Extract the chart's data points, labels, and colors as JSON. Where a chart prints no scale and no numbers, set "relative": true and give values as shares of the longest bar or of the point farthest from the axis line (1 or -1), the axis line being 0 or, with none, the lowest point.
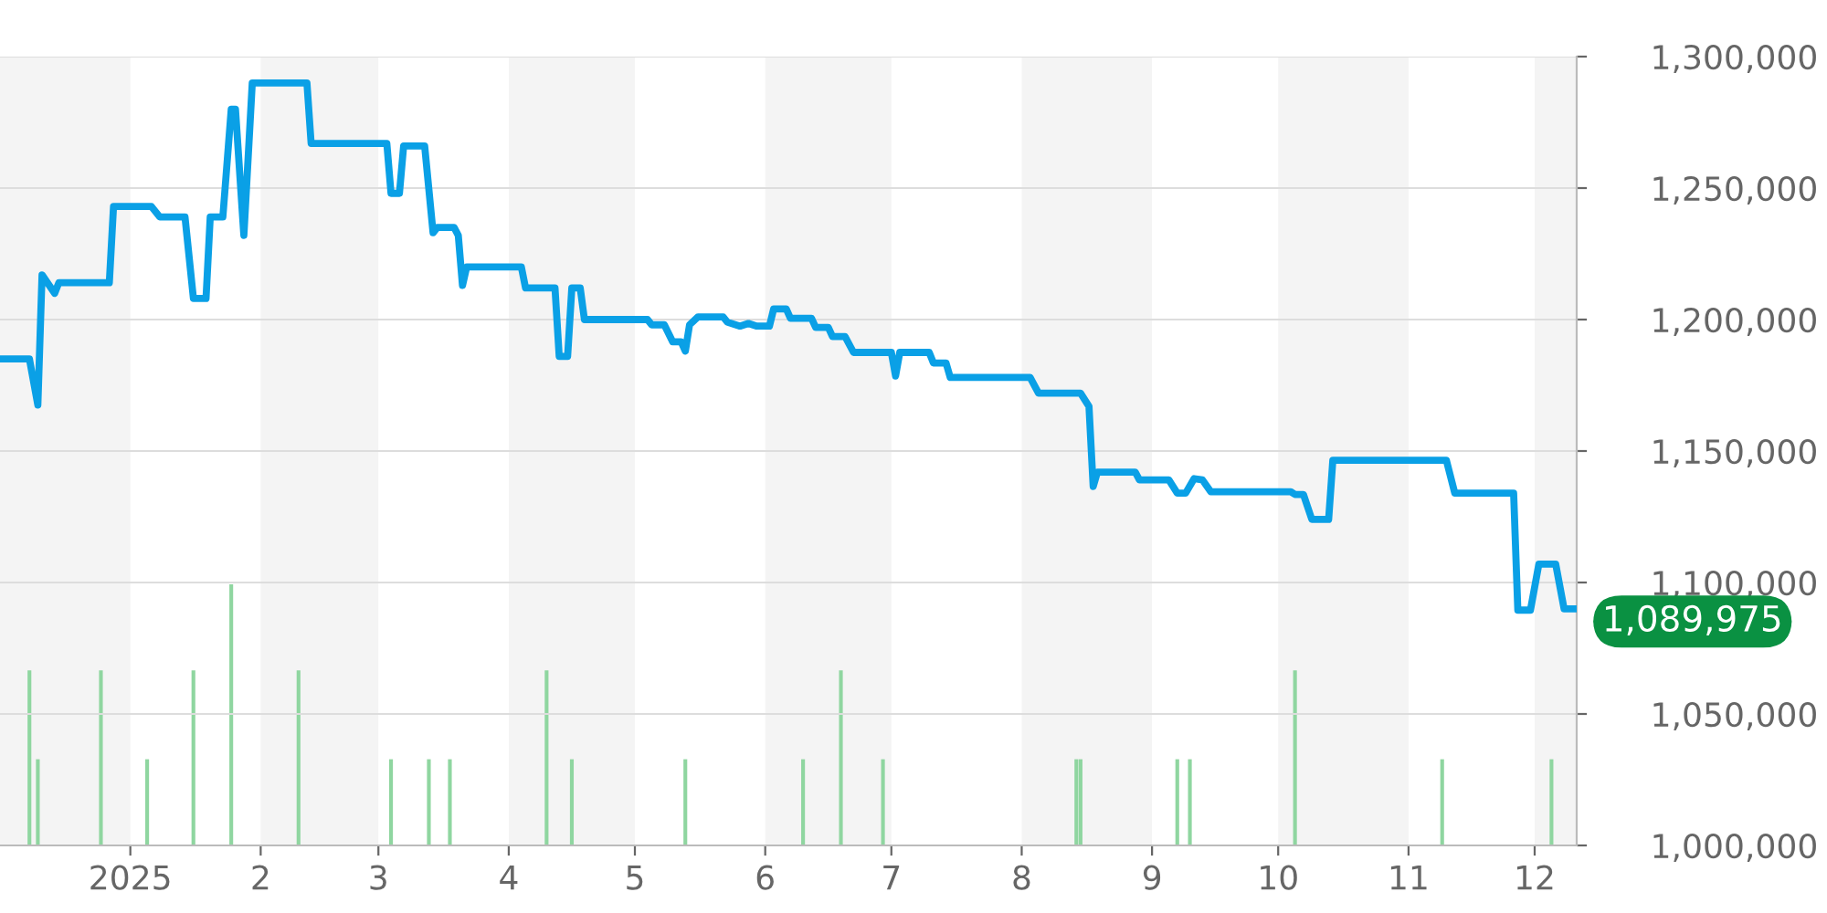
{
  "chart_data": [
    {
      "type": "line",
      "x": [
        "2024-12-01",
        "2024-12-08",
        "2024-12-10",
        "2024-12-11",
        "2024-12-14",
        "2024-12-15",
        "2024-12-27",
        "2024-12-28",
        "2025-01-06",
        "2025-01-08",
        "2025-01-14",
        "2025-01-16",
        "2025-01-19",
        "2025-01-20",
        "2025-01-23",
        "2025-01-25",
        "2025-01-26",
        "2025-01-28",
        "2025-01-30",
        "2025-02-12",
        "2025-02-13",
        "2025-03-03",
        "2025-03-04",
        "2025-03-06",
        "2025-03-07",
        "2025-03-12",
        "2025-03-14",
        "2025-03-15",
        "2025-03-19",
        "2025-03-20",
        "2025-03-21",
        "2025-03-22",
        "2025-04-04",
        "2025-04-05",
        "2025-04-12",
        "2025-04-13",
        "2025-04-15",
        "2025-04-16",
        "2025-04-18",
        "2025-04-19",
        "2025-05-04",
        "2025-05-05",
        "2025-05-08",
        "2025-05-10",
        "2025-05-12",
        "2025-05-13",
        "2025-05-14",
        "2025-05-16",
        "2025-05-22",
        "2025-05-23",
        "2025-05-26",
        "2025-05-28",
        "2025-05-30",
        "2025-06-02",
        "2025-06-03",
        "2025-06-06",
        "2025-06-07",
        "2025-06-12",
        "2025-06-13",
        "2025-06-16",
        "2025-06-17",
        "2025-06-20",
        "2025-06-22",
        "2025-07-01",
        "2025-07-02",
        "2025-07-03",
        "2025-07-10",
        "2025-07-11",
        "2025-07-14",
        "2025-07-15",
        "2025-08-03",
        "2025-08-05",
        "2025-08-15",
        "2025-08-17",
        "2025-08-18",
        "2025-08-19",
        "2025-08-28",
        "2025-08-29",
        "2025-09-05",
        "2025-09-07",
        "2025-09-09",
        "2025-09-11",
        "2025-09-13",
        "2025-09-15",
        "2025-10-04",
        "2025-10-05",
        "2025-10-07",
        "2025-10-09",
        "2025-10-13",
        "2025-10-14",
        "2025-11-10",
        "2025-11-12",
        "2025-11-26",
        "2025-11-27",
        "2025-11-30",
        "2025-12-02",
        "2025-12-06",
        "2025-12-08",
        "2025-12-11"
      ],
      "series": [
        {
          "color": "#0aa0e6",
          "values": [
            1185000,
            1185000,
            1167500,
            1217000,
            1210000,
            1214000,
            1214000,
            1243000,
            1243000,
            1239000,
            1239000,
            1208000,
            1208000,
            1239000,
            1239000,
            1280000,
            1280000,
            1232000,
            1290000,
            1290000,
            1267000,
            1267000,
            1248000,
            1248000,
            1266000,
            1266000,
            1233000,
            1235000,
            1235000,
            1232000,
            1213000,
            1220000,
            1220000,
            1212000,
            1212000,
            1186000,
            1186000,
            1212000,
            1212000,
            1200000,
            1200000,
            1198000,
            1198000,
            1191500,
            1191500,
            1188000,
            1198000,
            1201000,
            1201000,
            1199000,
            1197500,
            1198500,
            1197500,
            1197500,
            1204000,
            1204000,
            1200500,
            1200500,
            1197000,
            1197000,
            1193500,
            1193500,
            1187500,
            1187500,
            1178500,
            1187500,
            1187500,
            1183500,
            1183500,
            1178000,
            1178000,
            1172000,
            1172000,
            1167000,
            1136500,
            1142000,
            1142000,
            1139000,
            1139000,
            1134000,
            1134000,
            1139500,
            1139000,
            1134500,
            1134500,
            1133500,
            1133500,
            1124000,
            1124000,
            1146500,
            1146500,
            1134000,
            1134000,
            1089500,
            1089500,
            1107000,
            1107000,
            1089975,
            1089975
          ]
        }
      ],
      "xlim": [
        "2024-12-01",
        "2025-12-11"
      ],
      "xticks": [
        {
          "value": "2025-01-01",
          "label": "2025"
        },
        {
          "value": "2025-02-01",
          "label": "2"
        },
        {
          "value": "2025-03-01",
          "label": "3"
        },
        {
          "value": "2025-04-01",
          "label": "4"
        },
        {
          "value": "2025-05-01",
          "label": "5"
        },
        {
          "value": "2025-06-01",
          "label": "6"
        },
        {
          "value": "2025-07-01",
          "label": "7"
        },
        {
          "value": "2025-08-01",
          "label": "8"
        },
        {
          "value": "2025-09-01",
          "label": "9"
        },
        {
          "value": "2025-10-01",
          "label": "10"
        },
        {
          "value": "2025-11-01",
          "label": "11"
        },
        {
          "value": "2025-12-01",
          "label": "12"
        }
      ],
      "ylim": [
        1000000,
        1300000
      ],
      "yticks": [
        {
          "value": 1000000,
          "label": "1,000,000"
        },
        {
          "value": 1050000,
          "label": "1,050,000"
        },
        {
          "value": 1100000,
          "label": "1,100,000"
        },
        {
          "value": 1150000,
          "label": "1,150,000"
        },
        {
          "value": 1200000,
          "label": "1,200,000"
        },
        {
          "value": 1250000,
          "label": "1,250,000"
        },
        {
          "value": 1300000,
          "label": "1,300,000"
        }
      ],
      "grid": "y",
      "bands": [
        {
          "axis": "x",
          "from": "2024-12-01",
          "to": "2025-01-01",
          "color": "#f4f4f4"
        },
        {
          "axis": "x",
          "from": "2025-02-01",
          "to": "2025-03-01",
          "color": "#f4f4f4"
        },
        {
          "axis": "x",
          "from": "2025-04-01",
          "to": "2025-05-01",
          "color": "#f4f4f4"
        },
        {
          "axis": "x",
          "from": "2025-06-01",
          "to": "2025-07-01",
          "color": "#f4f4f4"
        },
        {
          "axis": "x",
          "from": "2025-08-01",
          "to": "2025-09-01",
          "color": "#f4f4f4"
        },
        {
          "axis": "x",
          "from": "2025-10-01",
          "to": "2025-11-01",
          "color": "#f4f4f4"
        },
        {
          "axis": "x",
          "from": "2025-12-01",
          "to": "2025-12-11",
          "color": "#f4f4f4"
        }
      ],
      "annotations": [
        {
          "text": "1,089,975",
          "x": "2025-12-11",
          "y": 1089975
        }
      ]
    },
    {
      "type": "bar",
      "relative": true,
      "xlim": [
        "2024-12-01",
        "2025-12-11"
      ],
      "x": [
        "2024-12-08",
        "2024-12-10",
        "2024-12-25",
        "2025-01-05",
        "2025-01-16",
        "2025-01-25",
        "2025-02-10",
        "2025-03-04",
        "2025-03-13",
        "2025-03-18",
        "2025-04-10",
        "2025-04-16",
        "2025-05-13",
        "2025-06-10",
        "2025-06-19",
        "2025-06-29",
        "2025-08-14",
        "2025-08-15",
        "2025-09-07",
        "2025-09-10",
        "2025-10-05",
        "2025-11-09",
        "2025-12-05"
      ],
      "series": [
        {
          "color": "#8fd6a0",
          "values": [
            0.67,
            0.33,
            0.67,
            0.33,
            0.67,
            1,
            0.67,
            0.33,
            0.33,
            0.33,
            0.67,
            0.33,
            0.33,
            0.33,
            0.67,
            0.33,
            0.33,
            0.33,
            0.33,
            0.33,
            0.67,
            0.33,
            0.33
          ]
        }
      ]
    }
  ]
}
